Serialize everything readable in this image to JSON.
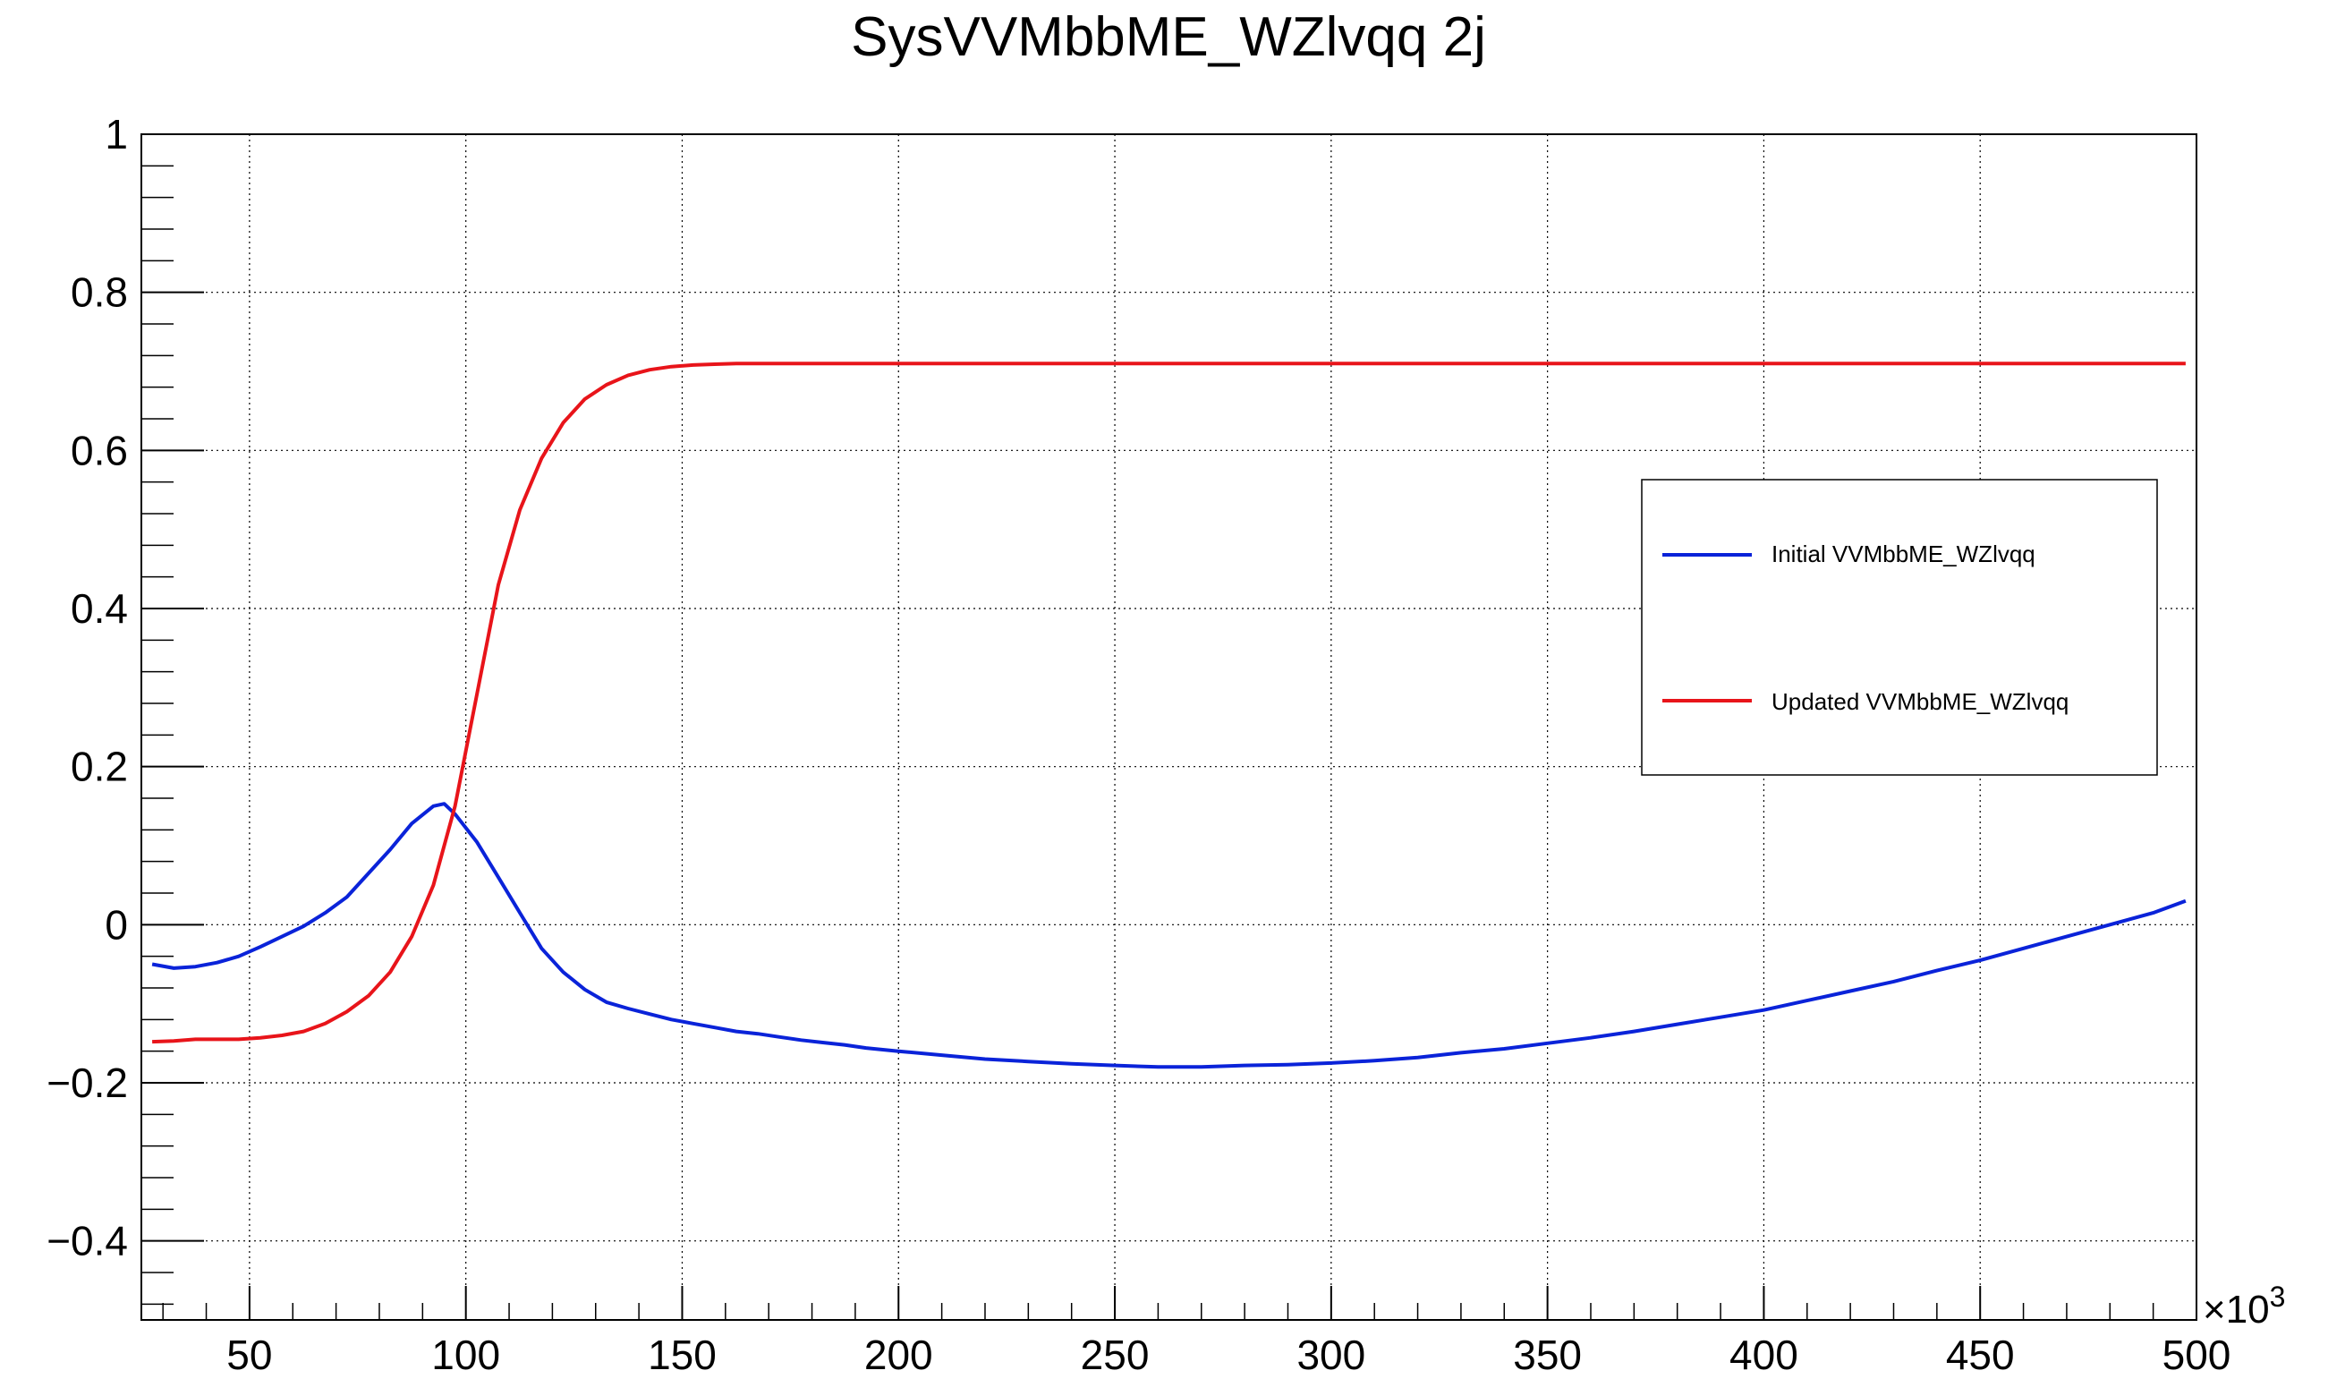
{
  "chart_data": {
    "type": "line",
    "title": "SysVVMbbME_WZlvqq 2j",
    "xlabel": "",
    "ylabel": "",
    "x_multiplier_label": "×10",
    "x_multiplier_exponent": "3",
    "xlim": [
      25,
      500
    ],
    "ylim": [
      -0.5,
      1
    ],
    "x_ticks": [
      50,
      100,
      150,
      200,
      250,
      300,
      350,
      400,
      450,
      500
    ],
    "y_ticks": [
      -0.4,
      -0.2,
      0,
      0.2,
      0.4,
      0.6,
      0.8,
      1
    ],
    "x_tick_labels": [
      "50",
      "100",
      "150",
      "200",
      "250",
      "300",
      "350",
      "400",
      "450",
      "500"
    ],
    "y_tick_labels": [
      "−0.4",
      "−0.2",
      "0",
      "0.2",
      "0.4",
      "0.6",
      "0.8",
      "1"
    ],
    "grid": true,
    "legend_position": "right",
    "series": [
      {
        "name": "Initial VVMbbME_WZlvqq",
        "color": "#0a23d9",
        "x": [
          27.5,
          32.5,
          37.5,
          42.5,
          47.5,
          52.5,
          57.5,
          62.5,
          67.5,
          72.5,
          77.5,
          82.5,
          87.5,
          92.5,
          95,
          97.5,
          102.5,
          107.5,
          112.5,
          117.5,
          122.5,
          127.5,
          132.5,
          137.5,
          142.5,
          147.5,
          152.5,
          157.5,
          162.5,
          167.5,
          172.5,
          177.5,
          182.5,
          187.5,
          192.5,
          200,
          210,
          220,
          230,
          240,
          250,
          260,
          270,
          280,
          290,
          300,
          310,
          320,
          330,
          340,
          350,
          360,
          370,
          380,
          390,
          400,
          410,
          420,
          430,
          440,
          450,
          460,
          470,
          480,
          490,
          497.5
        ],
        "y": [
          -0.05,
          -0.055,
          -0.053,
          -0.048,
          -0.04,
          -0.028,
          -0.015,
          -0.002,
          0.015,
          0.035,
          0.065,
          0.095,
          0.128,
          0.15,
          0.153,
          0.14,
          0.105,
          0.06,
          0.015,
          -0.03,
          -0.06,
          -0.082,
          -0.098,
          -0.106,
          -0.113,
          -0.12,
          -0.125,
          -0.13,
          -0.135,
          -0.138,
          -0.142,
          -0.146,
          -0.149,
          -0.152,
          -0.156,
          -0.16,
          -0.165,
          -0.17,
          -0.173,
          -0.176,
          -0.178,
          -0.18,
          -0.18,
          -0.178,
          -0.177,
          -0.175,
          -0.172,
          -0.168,
          -0.162,
          -0.157,
          -0.15,
          -0.143,
          -0.135,
          -0.126,
          -0.117,
          -0.108,
          -0.096,
          -0.084,
          -0.072,
          -0.058,
          -0.045,
          -0.03,
          -0.015,
          0.0,
          0.015,
          0.03
        ]
      },
      {
        "name": "Updated VVMbbME_WZlvqq",
        "color": "#e8141a",
        "x": [
          27.5,
          32.5,
          37.5,
          42.5,
          47.5,
          52.5,
          57.5,
          62.5,
          67.5,
          72.5,
          77.5,
          82.5,
          87.5,
          92.5,
          97.5,
          102.5,
          107.5,
          112.5,
          117.5,
          122.5,
          127.5,
          132.5,
          137.5,
          142.5,
          147.5,
          152.5,
          157.5,
          162.5,
          167.5,
          175,
          200,
          250,
          300,
          350,
          400,
          450,
          497.5
        ],
        "y": [
          -0.148,
          -0.147,
          -0.145,
          -0.145,
          -0.145,
          -0.143,
          -0.14,
          -0.135,
          -0.125,
          -0.11,
          -0.09,
          -0.06,
          -0.015,
          0.05,
          0.15,
          0.29,
          0.43,
          0.525,
          0.59,
          0.635,
          0.665,
          0.683,
          0.695,
          0.702,
          0.706,
          0.708,
          0.709,
          0.71,
          0.71,
          0.71,
          0.71,
          0.71,
          0.71,
          0.71,
          0.71,
          0.71,
          0.71
        ]
      }
    ]
  }
}
